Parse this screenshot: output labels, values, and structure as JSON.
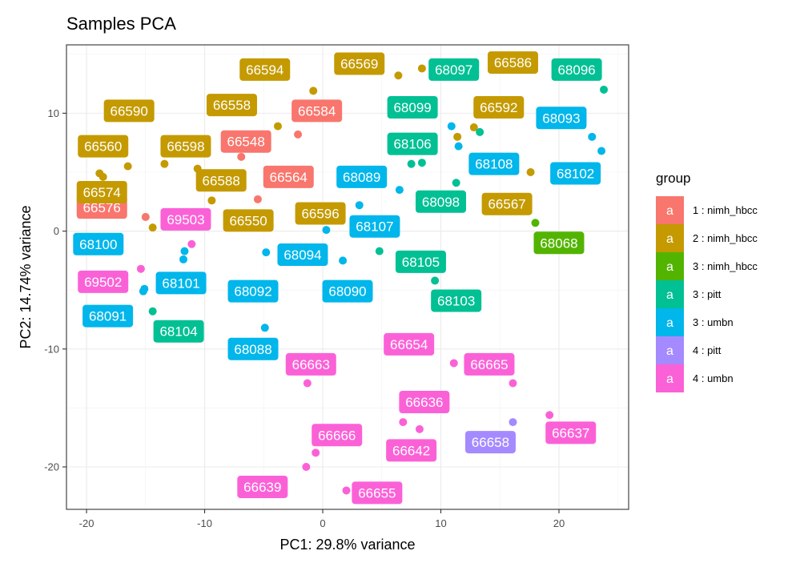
{
  "chart_data": {
    "type": "scatter",
    "title": "Samples PCA",
    "xlabel": "PC1: 29.8% variance",
    "ylabel": "PC2: 14.74% variance",
    "xlim": [
      -21.7,
      25.9
    ],
    "ylim": [
      -23.6,
      15.8
    ],
    "xticks": [
      -20,
      -10,
      0,
      10,
      20
    ],
    "yticks": [
      -20,
      -10,
      0,
      10
    ],
    "xtick_labels": [
      "-20",
      "-10",
      "0",
      "10",
      "20"
    ],
    "ytick_labels": [
      "-20",
      "-10",
      "0",
      "10"
    ],
    "grid": true,
    "legend": {
      "title": "group",
      "position": "right",
      "key_glyph": "a"
    },
    "groups": [
      {
        "name": "1 : nimh_hbcc",
        "color": "#F8766D"
      },
      {
        "name": "2 : nimh_hbcc",
        "color": "#C49A00"
      },
      {
        "name": "3 : nimh_hbcc",
        "color": "#53B400"
      },
      {
        "name": "3 : pitt",
        "color": "#00C094"
      },
      {
        "name": "3 : umbn",
        "color": "#00B6EB"
      },
      {
        "name": "4 : pitt",
        "color": "#A58AFF"
      },
      {
        "name": "4 : umbn",
        "color": "#FB61D7"
      }
    ],
    "points": [
      {
        "label": "66584",
        "group": 0,
        "x": -2.1,
        "y": 8.2,
        "lx": -0.5,
        "ly": 10.2
      },
      {
        "label": "66548",
        "group": 0,
        "x": -6.9,
        "y": 6.3,
        "lx": -6.5,
        "ly": 7.6
      },
      {
        "label": "66564",
        "group": 0,
        "x": -5.5,
        "y": 2.7,
        "lx": -2.9,
        "ly": 4.6
      },
      {
        "label": "66576",
        "group": 0,
        "x": -15.0,
        "y": 1.2,
        "lx": -18.7,
        "ly": 2.0
      },
      {
        "label": "66594",
        "group": 1,
        "x": -0.8,
        "y": 11.9,
        "lx": -4.9,
        "ly": 13.7
      },
      {
        "label": "66569",
        "group": 1,
        "x": 6.4,
        "y": 13.2,
        "lx": 3.1,
        "ly": 14.2
      },
      {
        "label": "66586",
        "group": 1,
        "x": 17.5,
        "y": 14.3,
        "lx": 16.1,
        "ly": 14.3
      },
      {
        "label": "66590",
        "group": 1,
        "x": -18.9,
        "y": 4.9,
        "lx": -16.4,
        "ly": 10.2
      },
      {
        "label": "66558",
        "group": 1,
        "x": -3.8,
        "y": 8.9,
        "lx": -7.7,
        "ly": 10.7
      },
      {
        "label": "66592",
        "group": 1,
        "x": 12.8,
        "y": 8.8,
        "lx": 14.9,
        "ly": 10.5
      },
      {
        "label": "66560",
        "group": 1,
        "x": -16.5,
        "y": 5.5,
        "lx": -18.6,
        "ly": 7.2
      },
      {
        "label": "66598",
        "group": 1,
        "x": -13.4,
        "y": 5.7,
        "lx": -11.6,
        "ly": 7.2
      },
      {
        "label": "66588",
        "group": 1,
        "x": -10.6,
        "y": 5.3,
        "lx": -8.6,
        "ly": 4.3
      },
      {
        "label": "66574",
        "group": 1,
        "x": -18.6,
        "y": 4.6,
        "lx": -18.7,
        "ly": 3.3
      },
      {
        "label": "66550",
        "group": 1,
        "x": -9.4,
        "y": 2.6,
        "lx": -6.3,
        "ly": 0.9
      },
      {
        "label": "66596",
        "group": 1,
        "x": -1.2,
        "y": 1.5,
        "lx": -0.2,
        "ly": 1.5
      },
      {
        "label": "66567",
        "group": 1,
        "x": 17.6,
        "y": 5.0,
        "lx": 15.6,
        "ly": 2.3
      },
      {
        "label": "",
        "group": 1,
        "x": -14.4,
        "y": 0.3,
        "lx": null,
        "ly": null
      },
      {
        "label": "",
        "group": 1,
        "x": 11.4,
        "y": 8.0,
        "lx": null,
        "ly": null
      },
      {
        "label": "",
        "group": 1,
        "x": 8.4,
        "y": 13.8,
        "lx": null,
        "ly": null
      },
      {
        "label": "68068",
        "group": 2,
        "x": 18.0,
        "y": 0.7,
        "lx": 20.0,
        "ly": -1.0
      },
      {
        "label": "68097",
        "group": 3,
        "x": 11.0,
        "y": 13.3,
        "lx": 11.1,
        "ly": 13.7
      },
      {
        "label": "68096",
        "group": 3,
        "x": 23.8,
        "y": 12.0,
        "lx": 21.5,
        "ly": 13.7
      },
      {
        "label": "68099",
        "group": 3,
        "x": 13.3,
        "y": 8.4,
        "lx": 7.6,
        "ly": 10.5
      },
      {
        "label": "68106",
        "group": 3,
        "x": 7.5,
        "y": 5.7,
        "lx": 7.6,
        "ly": 7.4
      },
      {
        "label": "68098",
        "group": 3,
        "x": 11.3,
        "y": 4.1,
        "lx": 10.0,
        "ly": 2.5
      },
      {
        "label": "68105",
        "group": 3,
        "x": 4.8,
        "y": -1.7,
        "lx": 8.3,
        "ly": -2.6
      },
      {
        "label": "68103",
        "group": 3,
        "x": 9.5,
        "y": -4.2,
        "lx": 11.3,
        "ly": -5.9
      },
      {
        "label": "68104",
        "group": 3,
        "x": -14.4,
        "y": -6.8,
        "lx": -12.2,
        "ly": -8.5
      },
      {
        "label": "",
        "group": 3,
        "x": 8.4,
        "y": 5.8,
        "lx": null,
        "ly": null
      },
      {
        "label": "68093",
        "group": 4,
        "x": 22.8,
        "y": 8.0,
        "lx": 20.2,
        "ly": 9.6
      },
      {
        "label": "68102",
        "group": 4,
        "x": 23.6,
        "y": 6.8,
        "lx": 21.4,
        "ly": 4.9
      },
      {
        "label": "68108",
        "group": 4,
        "x": 11.5,
        "y": 7.2,
        "lx": 14.5,
        "ly": 5.7
      },
      {
        "label": "68089",
        "group": 4,
        "x": 6.5,
        "y": 3.5,
        "lx": 3.3,
        "ly": 4.6
      },
      {
        "label": "68107",
        "group": 4,
        "x": 3.1,
        "y": 2.2,
        "lx": 4.4,
        "ly": 0.4
      },
      {
        "label": "68100",
        "group": 4,
        "x": -11.7,
        "y": -1.7,
        "lx": -19.0,
        "ly": -1.1
      },
      {
        "label": "68094",
        "group": 4,
        "x": -4.8,
        "y": -1.8,
        "lx": -1.7,
        "ly": -2.0
      },
      {
        "label": "68101",
        "group": 4,
        "x": -15.1,
        "y": -4.9,
        "lx": -12.0,
        "ly": -4.4
      },
      {
        "label": "68092",
        "group": 4,
        "x": 0.3,
        "y": 0.1,
        "lx": -5.9,
        "ly": -5.1
      },
      {
        "label": "68090",
        "group": 4,
        "x": 1.7,
        "y": -2.5,
        "lx": 2.1,
        "ly": -5.1
      },
      {
        "label": "68091",
        "group": 4,
        "x": -15.2,
        "y": -5.1,
        "lx": -18.2,
        "ly": -7.2
      },
      {
        "label": "68088",
        "group": 4,
        "x": -4.9,
        "y": -8.2,
        "lx": -5.9,
        "ly": -10.0
      },
      {
        "label": "",
        "group": 4,
        "x": -11.8,
        "y": -2.4,
        "lx": null,
        "ly": null
      },
      {
        "label": "",
        "group": 4,
        "x": 10.9,
        "y": 8.9,
        "lx": null,
        "ly": null
      },
      {
        "label": "66658",
        "group": 5,
        "x": 16.1,
        "y": -16.2,
        "lx": 14.2,
        "ly": -17.9
      },
      {
        "label": "69503",
        "group": 6,
        "x": -11.1,
        "y": -1.1,
        "lx": -11.6,
        "ly": 1.0
      },
      {
        "label": "69502",
        "group": 6,
        "x": -15.4,
        "y": -3.2,
        "lx": -18.6,
        "ly": -4.3
      },
      {
        "label": "66663",
        "group": 6,
        "x": -1.3,
        "y": -12.9,
        "lx": -1.0,
        "ly": -11.3
      },
      {
        "label": "66654",
        "group": 6,
        "x": 11.1,
        "y": -11.2,
        "lx": 7.3,
        "ly": -9.6
      },
      {
        "label": "66665",
        "group": 6,
        "x": 16.1,
        "y": -12.9,
        "lx": 14.1,
        "ly": -11.3
      },
      {
        "label": "66636",
        "group": 6,
        "x": 6.8,
        "y": -16.2,
        "lx": 8.6,
        "ly": -14.5
      },
      {
        "label": "66666",
        "group": 6,
        "x": -0.6,
        "y": -18.8,
        "lx": 1.2,
        "ly": -17.3
      },
      {
        "label": "66642",
        "group": 6,
        "x": 8.2,
        "y": -16.8,
        "lx": 7.5,
        "ly": -18.6
      },
      {
        "label": "66637",
        "group": 6,
        "x": 19.2,
        "y": -15.6,
        "lx": 21.0,
        "ly": -17.1
      },
      {
        "label": "66639",
        "group": 6,
        "x": -1.4,
        "y": -20.0,
        "lx": -5.1,
        "ly": -21.7
      },
      {
        "label": "66655",
        "group": 6,
        "x": 2.0,
        "y": -22.0,
        "lx": 4.6,
        "ly": -22.2
      }
    ]
  }
}
